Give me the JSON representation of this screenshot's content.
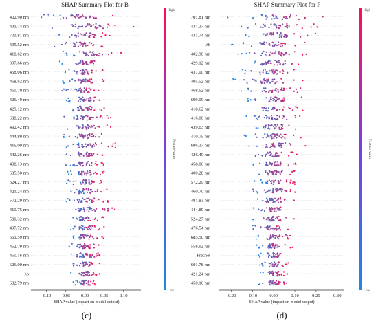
{
  "colors": {
    "low": "#1e88e5",
    "high": "#ff0d57"
  },
  "chart_data": [
    {
      "type": "scatter",
      "title": "SHAP Summary Plot for B",
      "panel_label": "(c)",
      "xlabel": "SHAP value (impact on model output)",
      "xlim": [
        -0.14,
        0.145
      ],
      "xticks": [
        "-0.10",
        "-0.05",
        "0.00",
        "0.05",
        "0.10"
      ],
      "xtick_values": [
        -0.1,
        -0.05,
        0,
        0.05,
        0.1
      ],
      "colorbar": {
        "high": "High",
        "low": "Low",
        "label": "Feature value"
      },
      "features": [
        "402.90 nm",
        "431.74 nm",
        "701.81 nm",
        "405.52 nm",
        "418.62 nm",
        "397.66 nm",
        "458.06 nm",
        "468.62 nm",
        "460.70 nm",
        "426.49 nm",
        "429.12 nm",
        "688.22 nm",
        "492.42 nm",
        "444.89 nm",
        "416.00 nm",
        "442.26 nm",
        "408.13 nm",
        "685.50 nm",
        "524.27 nm",
        "421.24 nm",
        "572.29 nm",
        "410.75 nm",
        "580.32 nm",
        "497.72 nm",
        "561.59 nm",
        "452.79 nm",
        "450.16 nm",
        "626.00 nm",
        "λb",
        "682.79 nm"
      ],
      "spread": [
        [
          -0.12,
          0.08
        ],
        [
          -0.09,
          0.13
        ],
        [
          -0.08,
          0.07
        ],
        [
          -0.09,
          0.06
        ],
        [
          -0.06,
          0.1
        ],
        [
          -0.07,
          0.05
        ],
        [
          -0.07,
          0.05
        ],
        [
          -0.06,
          0.05
        ],
        [
          -0.07,
          0.04
        ],
        [
          -0.05,
          0.08
        ],
        [
          -0.06,
          0.05
        ],
        [
          -0.06,
          0.07
        ],
        [
          -0.05,
          0.07
        ],
        [
          -0.06,
          0.05
        ],
        [
          -0.05,
          0.09
        ],
        [
          -0.05,
          0.05
        ],
        [
          -0.05,
          0.05
        ],
        [
          -0.05,
          0.05
        ],
        [
          -0.05,
          0.05
        ],
        [
          -0.04,
          0.06
        ],
        [
          -0.05,
          0.06
        ],
        [
          -0.04,
          0.09
        ],
        [
          -0.04,
          0.05
        ],
        [
          -0.04,
          0.05
        ],
        [
          -0.04,
          0.05
        ],
        [
          -0.05,
          0.04
        ],
        [
          -0.04,
          0.04
        ],
        [
          -0.04,
          0.04
        ],
        [
          -0.04,
          0.04
        ],
        [
          -0.03,
          0.03
        ]
      ]
    },
    {
      "type": "scatter",
      "title": "SHAP Summary Plot for P",
      "panel_label": "(d)",
      "xlabel": "SHAP value (impact on model output)",
      "xlim": [
        -0.26,
        0.33
      ],
      "xticks": [
        "-0.20",
        "-0.10",
        "0.00",
        "0.10",
        "0.20",
        "0.30"
      ],
      "xtick_values": [
        -0.2,
        -0.1,
        0,
        0.1,
        0.2,
        0.3
      ],
      "colorbar": {
        "high": "High",
        "low": "Low",
        "label": "Feature value"
      },
      "features": [
        "701.81 nm",
        "434.37 nm",
        "431.74 nm",
        "λb",
        "402.90 nm",
        "429.12 nm",
        "437.00 nm",
        "405.52 nm",
        "468.62 nm",
        "699.09 nm",
        "418.62 nm",
        "416.00 nm",
        "439.63 nm",
        "410.75 nm",
        "696.37 nm",
        "426.49 nm",
        "458.06 nm",
        "400.28 nm",
        "572.29 nm",
        "460.70 nm",
        "481.83 nm",
        "444.89 nm",
        "524.27 nm",
        "476.54 nm",
        "685.50 nm",
        "558.92 nm",
        "Frechet",
        "601.78 nm",
        "421.24 nm",
        "450.16 nm"
      ],
      "spread": [
        [
          -0.22,
          0.3
        ],
        [
          -0.18,
          0.24
        ],
        [
          -0.16,
          0.22
        ],
        [
          -0.22,
          0.15
        ],
        [
          -0.17,
          0.18
        ],
        [
          -0.15,
          0.18
        ],
        [
          -0.15,
          0.14
        ],
        [
          -0.2,
          0.14
        ],
        [
          -0.16,
          0.13
        ],
        [
          -0.14,
          0.15
        ],
        [
          -0.13,
          0.14
        ],
        [
          -0.13,
          0.15
        ],
        [
          -0.12,
          0.14
        ],
        [
          -0.14,
          0.16
        ],
        [
          -0.12,
          0.15
        ],
        [
          -0.12,
          0.13
        ],
        [
          -0.11,
          0.12
        ],
        [
          -0.11,
          0.12
        ],
        [
          -0.1,
          0.11
        ],
        [
          -0.12,
          0.12
        ],
        [
          -0.1,
          0.11
        ],
        [
          -0.1,
          0.1
        ],
        [
          -0.1,
          0.1
        ],
        [
          -0.1,
          0.09
        ],
        [
          -0.09,
          0.1
        ],
        [
          -0.09,
          0.09
        ],
        [
          -0.08,
          0.09
        ],
        [
          -0.08,
          0.08
        ],
        [
          -0.08,
          0.07
        ],
        [
          -0.07,
          0.07
        ]
      ]
    }
  ]
}
